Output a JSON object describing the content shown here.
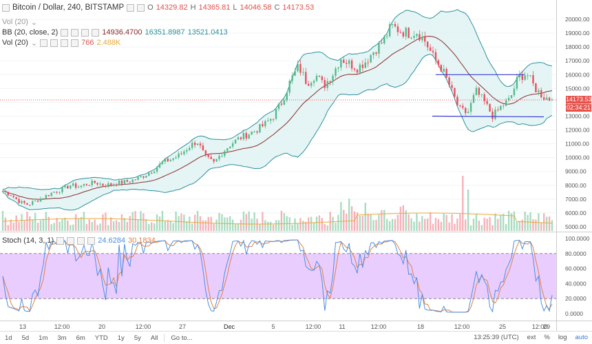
{
  "symbol": {
    "title": "Bitcoin / Dollar, 240, BITSTAMP",
    "open_label": "O",
    "open": "14329.82",
    "high_label": "H",
    "high": "14365.81",
    "low_label": "L",
    "low": "14046.58",
    "close_label": "C",
    "close": "14173.53"
  },
  "legends": {
    "vol_collapsed": "Vol (20)",
    "bb_label": "BB (20, close, 2)",
    "bb_mid": "14936.4700",
    "bb_upper": "16351.8987",
    "bb_lower": "13521.0413",
    "vol_label": "Vol (20)",
    "vol_value": "766",
    "vol_ma": "2.488K",
    "stoch_label": "Stoch (14, 3, 1)",
    "stoch_k": "24.6284",
    "stoch_d": "30.1834"
  },
  "price_axis": {
    "ticks": [
      "20000.00",
      "19000.00",
      "18000.00",
      "17000.00",
      "16000.00",
      "15000.00",
      "14000.00",
      "13000.00",
      "12000.00",
      "11000.00",
      "10000.00",
      "9000.00",
      "8000.00",
      "7000.00",
      "6000.00",
      "5000.00"
    ],
    "last_price": "14173.53",
    "countdown": "02:34:21",
    "colors": {
      "last_price_bg": "#e8504a",
      "countdown_bg": "#e8504a"
    }
  },
  "stoch_axis": {
    "ticks": [
      "100.0000",
      "80.0000",
      "60.0000",
      "40.0000",
      "20.0000",
      "0.0000"
    ]
  },
  "time_axis": {
    "ticks": [
      "13",
      "12:00",
      "20",
      "12:00",
      "27",
      "Dec",
      "5",
      "12:00",
      "11",
      "12:00",
      "18",
      "12:00",
      "25",
      "12:00",
      "29"
    ]
  },
  "bottom_bar": {
    "ranges": [
      "1d",
      "5d",
      "1m",
      "3m",
      "6m",
      "YTD",
      "1y",
      "5y",
      "All"
    ],
    "goto": "Go to...",
    "clock": "13:25:39 (UTC)",
    "ext": "ext",
    "percent": "%",
    "log": "log",
    "auto": "auto"
  },
  "chart_data": {
    "type": "candlestick",
    "y_range": [
      5000,
      20500
    ],
    "stoch_range": [
      0,
      100
    ],
    "stoch_bands": [
      20,
      80
    ],
    "series_colors": {
      "up": "#53b987",
      "down": "#eb4d5c",
      "bb_mid": "#8b2a2a",
      "bb_band": "#2c8f9b",
      "bb_fill": "#dff2f3",
      "vol_up": "#a8dcc0",
      "vol_down": "#f5b2b8",
      "vol_ma": "#e8a93b",
      "stoch_k": "#4a8fe0",
      "stoch_d": "#e08040",
      "stoch_fill": "#e6c4ff",
      "trendline": "#3a3ad6"
    },
    "trendlines": [
      {
        "from_price": 16000,
        "to_price": 16000
      },
      {
        "from_price": 13000,
        "to_price": 12950
      }
    ],
    "close_path": [
      7600,
      7300,
      6800,
      6600,
      6900,
      7200,
      7500,
      7700,
      8000,
      7900,
      8100,
      8200,
      8000,
      8100,
      8200,
      8300,
      8500,
      8800,
      9200,
      9700,
      9900,
      10200,
      10800,
      11200,
      10000,
      9600,
      10400,
      11000,
      11400,
      11700,
      12000,
      12400,
      13000,
      14000,
      15500,
      16600,
      15400,
      16000,
      15200,
      16000,
      17200,
      16800,
      16500,
      17000,
      17800,
      18400,
      19500,
      19200,
      19000,
      19100,
      18400,
      17200,
      16400,
      15000,
      13500,
      13200,
      14800,
      14000,
      13000,
      13700,
      14200,
      15800,
      16100,
      15000,
      14400,
      14173
    ]
  }
}
